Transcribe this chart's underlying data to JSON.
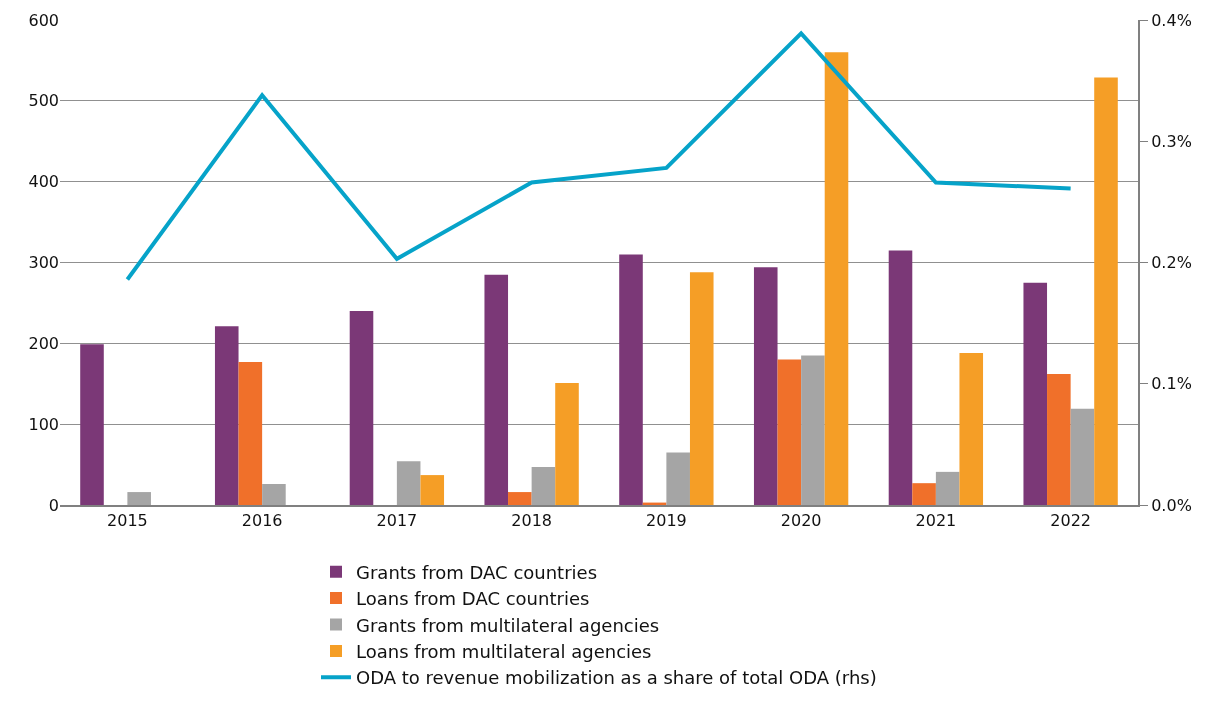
{
  "chart_data": {
    "type": "bar",
    "categories": [
      "2015",
      "2016",
      "2017",
      "2018",
      "2019",
      "2020",
      "2021",
      "2022"
    ],
    "series": [
      {
        "name": "Grants from DAC countries",
        "color": "#7b3877",
        "values": [
          199,
          221,
          240,
          285,
          310,
          294,
          315,
          275
        ]
      },
      {
        "name": "Loans from DAC countries",
        "color": "#f0702a",
        "values": [
          0,
          177,
          0,
          16,
          3,
          180,
          27,
          162
        ]
      },
      {
        "name": "Grants from multilateral agencies",
        "color": "#a5a5a5",
        "values": [
          16,
          26,
          54,
          47,
          65,
          185,
          41,
          119
        ]
      },
      {
        "name": "Loans from multilateral agencies",
        "color": "#f59e26",
        "values": [
          0,
          0,
          37,
          151,
          288,
          560,
          188,
          529
        ]
      },
      {
        "name": "ODA to revenue mobilization as a share of total ODA (rhs)",
        "color": "#06a3c9",
        "type": "line",
        "axis": "y2",
        "values": [
          0.186,
          0.338,
          0.203,
          0.266,
          0.278,
          0.389,
          0.266,
          0.261
        ]
      }
    ],
    "ylim": [
      0,
      600
    ],
    "yticks": [
      0,
      100,
      200,
      300,
      400,
      500,
      600
    ],
    "y2lim": [
      0,
      0.4
    ],
    "y2ticks": [
      {
        "value": 0,
        "label": "0.0%"
      },
      {
        "value": 0.1,
        "label": "0.1%"
      },
      {
        "value": 0.2,
        "label": "0.2%"
      },
      {
        "value": 0.3,
        "label": "0.3%"
      },
      {
        "value": 0.4,
        "label": "0.4%"
      }
    ],
    "grid": "y",
    "legend": "bottom"
  }
}
